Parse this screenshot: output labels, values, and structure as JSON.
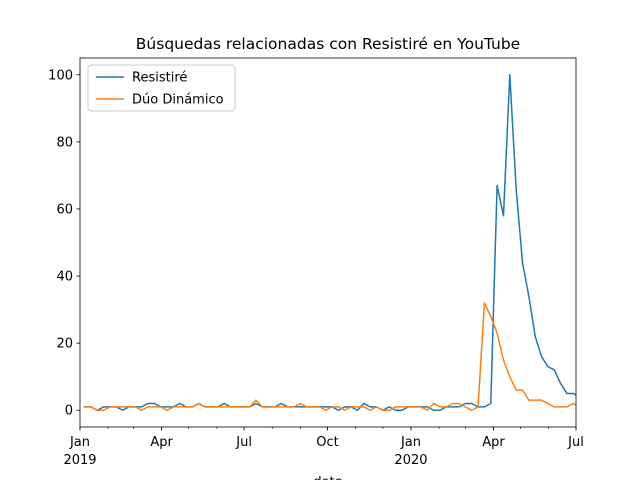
{
  "chart_data": {
    "type": "line",
    "title": "Búsquedas relacionadas con Resistiré en YouTube",
    "xlabel": "date",
    "ylabel": "",
    "x_start": "2019-01-06",
    "x_step_days": 7,
    "xlim": [
      "2019-01-01",
      "2020-07-01"
    ],
    "ylim": [
      -5,
      105
    ],
    "x_ticks": [
      {
        "date": "2019-01-01",
        "label": "Jan",
        "year": "2019"
      },
      {
        "date": "2019-04-01",
        "label": "Apr",
        "year": ""
      },
      {
        "date": "2019-07-01",
        "label": "Jul",
        "year": ""
      },
      {
        "date": "2019-10-01",
        "label": "Oct",
        "year": ""
      },
      {
        "date": "2020-01-01",
        "label": "Jan",
        "year": "2020"
      },
      {
        "date": "2020-04-01",
        "label": "Apr",
        "year": ""
      },
      {
        "date": "2020-07-01",
        "label": "Jul",
        "year": ""
      }
    ],
    "y_ticks": [
      0,
      20,
      40,
      60,
      80,
      100
    ],
    "grid": false,
    "legend_position": "top-left",
    "series": [
      {
        "name": "Resistiré",
        "color": "#1f77b4",
        "values": [
          1,
          1,
          0,
          1,
          1,
          1,
          0,
          1,
          1,
          1,
          2,
          2,
          1,
          1,
          1,
          2,
          1,
          1,
          2,
          1,
          1,
          1,
          2,
          1,
          1,
          1,
          1,
          2,
          1,
          1,
          1,
          2,
          1,
          1,
          1,
          1,
          1,
          1,
          1,
          1,
          0,
          1,
          1,
          0,
          2,
          1,
          1,
          0,
          1,
          0,
          0,
          1,
          1,
          1,
          1,
          0,
          0,
          1,
          1,
          1,
          2,
          2,
          1,
          1,
          2,
          67,
          58,
          100,
          66,
          44,
          34,
          22,
          16,
          13,
          12,
          8,
          5,
          5,
          4,
          4,
          4,
          2
        ]
      },
      {
        "name": "Dúo Dinámico",
        "color": "#ff7f0e",
        "values": [
          1,
          1,
          0,
          0,
          1,
          1,
          1,
          1,
          1,
          0,
          1,
          1,
          1,
          0,
          1,
          1,
          1,
          1,
          2,
          1,
          1,
          1,
          1,
          1,
          1,
          1,
          1,
          3,
          1,
          1,
          1,
          1,
          1,
          1,
          2,
          1,
          1,
          1,
          0,
          1,
          1,
          0,
          1,
          1,
          1,
          0,
          1,
          0,
          0,
          1,
          1,
          1,
          1,
          1,
          0,
          2,
          1,
          1,
          2,
          2,
          1,
          0,
          1,
          32,
          28,
          23,
          15,
          10,
          6,
          6,
          3,
          3,
          3,
          2,
          1,
          1,
          1,
          2,
          1,
          4
        ]
      }
    ]
  }
}
